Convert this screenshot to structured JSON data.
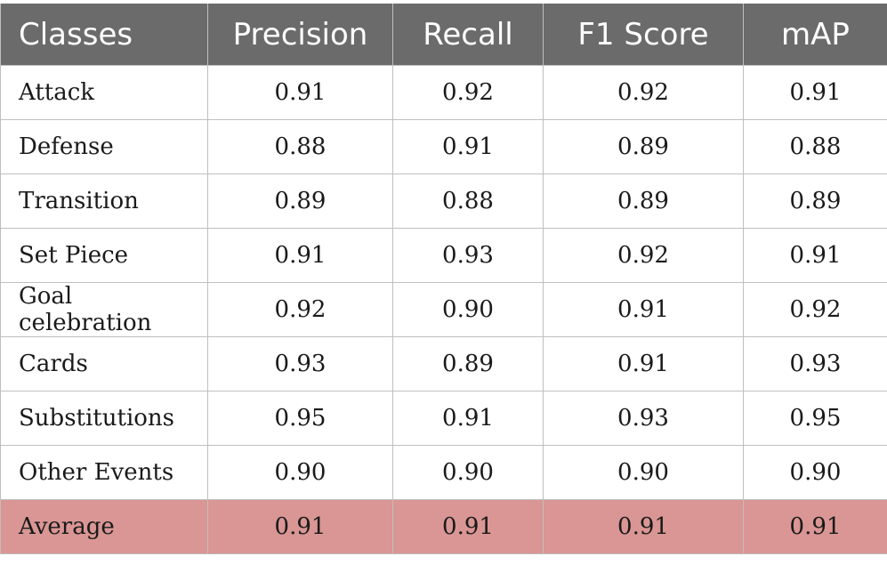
{
  "table": {
    "headers": [
      "Classes",
      "Precision",
      "Recall",
      "F1 Score",
      "mAP"
    ],
    "rows": [
      [
        "Attack",
        "0.91",
        "0.92",
        "0.92",
        "0.91"
      ],
      [
        "Defense",
        "0.88",
        "0.91",
        "0.89",
        "0.88"
      ],
      [
        "Transition",
        "0.89",
        "0.88",
        "0.89",
        "0.89"
      ],
      [
        "Set Piece",
        "0.91",
        "0.93",
        "0.92",
        "0.91"
      ],
      [
        "Goal celebration",
        "0.92",
        "0.90",
        "0.91",
        "0.92"
      ],
      [
        "Cards",
        "0.93",
        "0.89",
        "0.91",
        "0.93"
      ],
      [
        "Substitutions",
        "0.95",
        "0.91",
        "0.93",
        "0.95"
      ],
      [
        "Other Events",
        "0.90",
        "0.90",
        "0.90",
        "0.90"
      ]
    ],
    "average": [
      "Average",
      "0.91",
      "0.91",
      "0.91",
      "0.91"
    ]
  },
  "colors": {
    "header_bg": "#6b6b6b",
    "header_text": "#ffffff",
    "average_row_bg": "#d99694",
    "grid": "#bfbfbf"
  }
}
